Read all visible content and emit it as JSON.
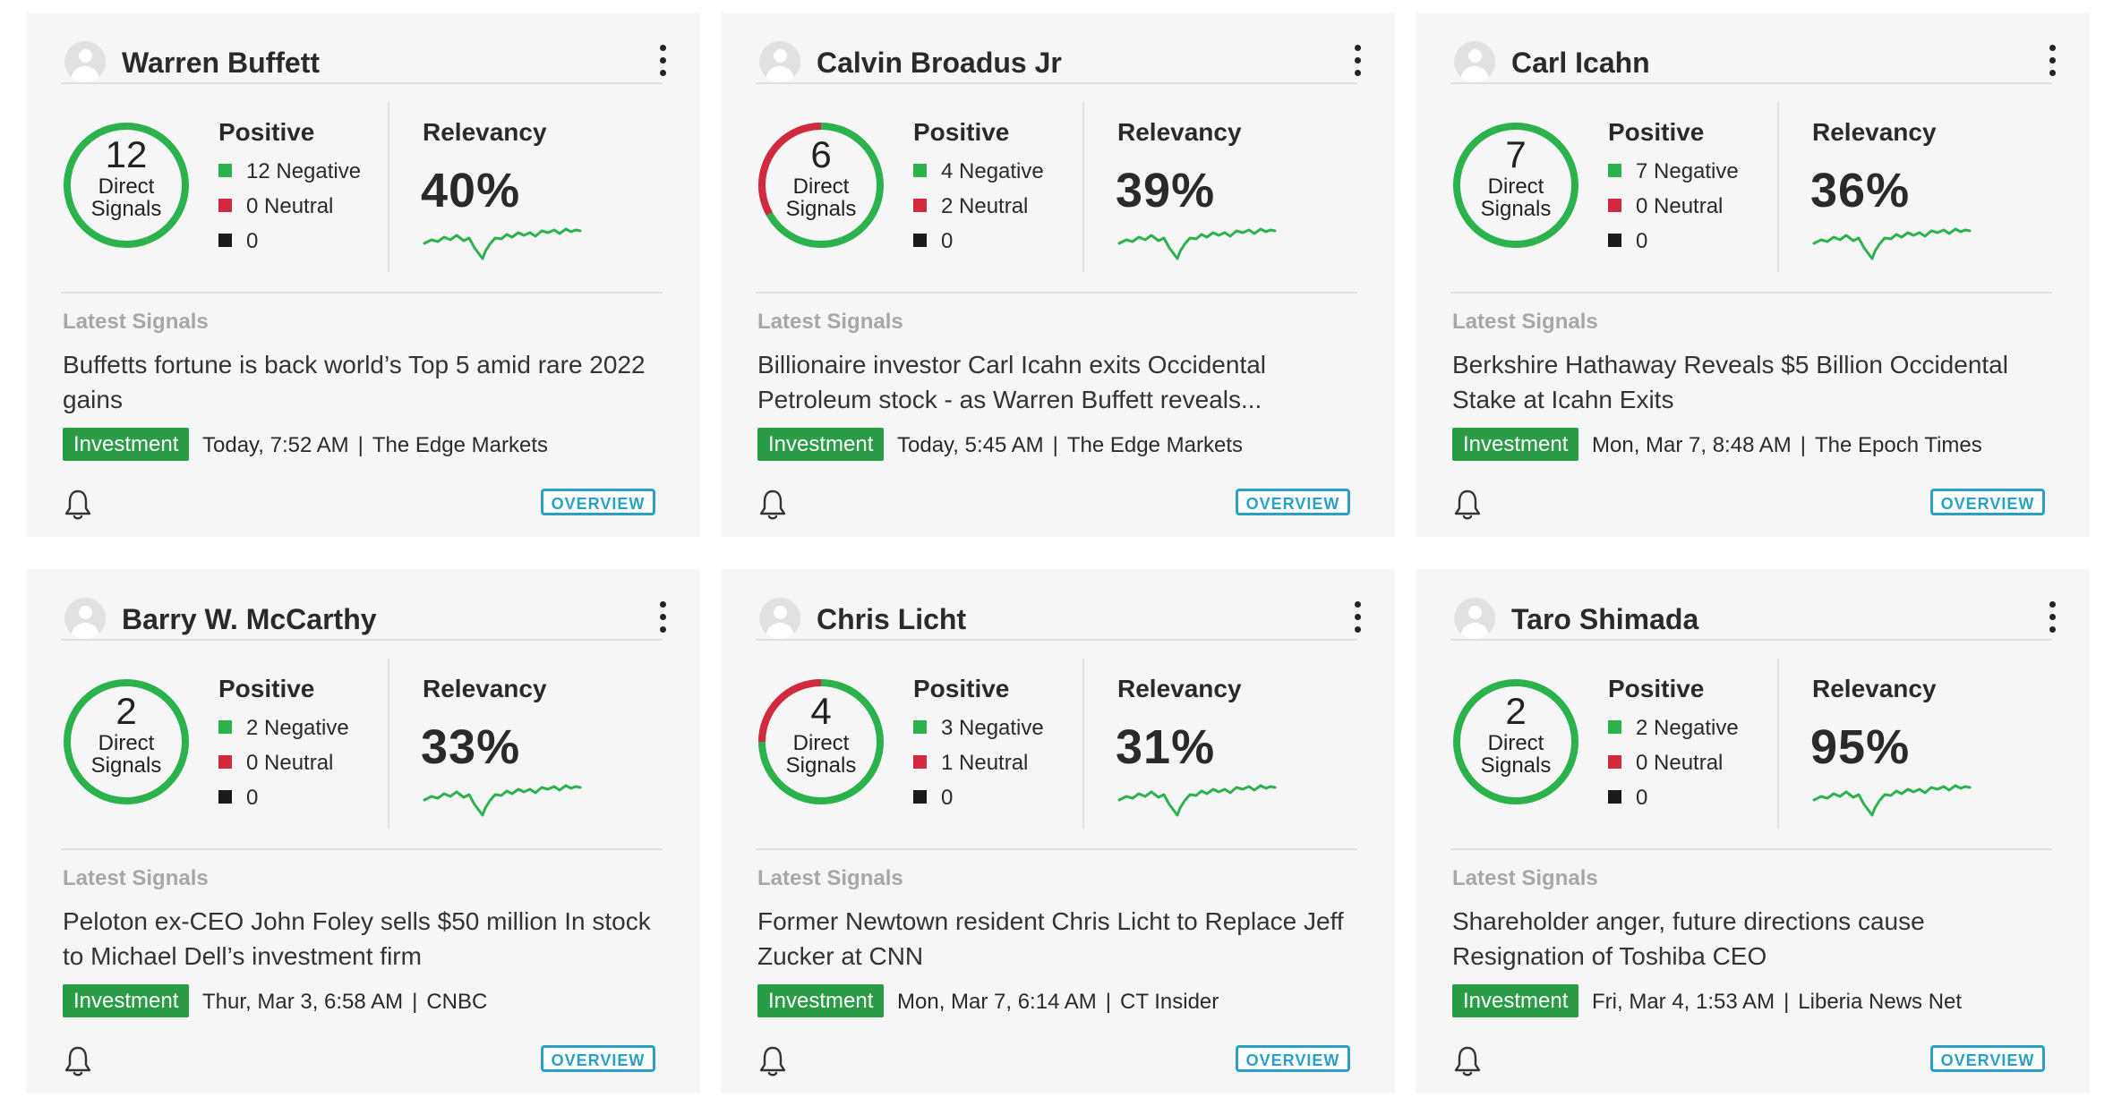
{
  "labels": {
    "direct": "Direct",
    "signals": "Signals",
    "positive": "Positive",
    "relevancy": "Relevancy",
    "latest_signals": "Latest Signals",
    "overview": "OVERVIEW",
    "separator": "|"
  },
  "colors": {
    "positive": "#2bb24c",
    "negative": "#d3293e",
    "neutral": "#1a1a1a",
    "tag": "#2b9c46",
    "overview": "#2aa0c8"
  },
  "icons": {
    "avatar": "user-avatar-icon",
    "menu": "more-vertical-icon",
    "bell": "bell-icon"
  },
  "cards": [
    {
      "name": "Warren Buffett",
      "count": "12",
      "ring_negative_fraction": 0,
      "legend": {
        "negative": "12 Negative",
        "neutral": "0 Neutral",
        "other": "0"
      },
      "relevancy": "40%",
      "headline": "Buffetts fortune is back world’s Top 5 amid rare 2022 gains",
      "tag": "Investment",
      "time": "Today, 7:52 AM",
      "source": "The Edge Markets"
    },
    {
      "name": "Calvin Broadus Jr",
      "count": "6",
      "ring_negative_fraction": 0.33,
      "legend": {
        "negative": "4 Negative",
        "neutral": "2 Neutral",
        "other": "0"
      },
      "relevancy": "39%",
      "headline": "Billionaire investor Carl Icahn exits Occidental Petroleum stock - as Warren Buffett reveals...",
      "tag": "Investment",
      "time": "Today, 5:45 AM",
      "source": "The Edge Markets"
    },
    {
      "name": "Carl Icahn",
      "count": "7",
      "ring_negative_fraction": 0,
      "legend": {
        "negative": "7 Negative",
        "neutral": "0 Neutral",
        "other": "0"
      },
      "relevancy": "36%",
      "headline": "Berkshire Hathaway Reveals $5 Billion Occidental Stake at Icahn Exits",
      "tag": "Investment",
      "time": "Mon, Mar 7, 8:48 AM",
      "source": "The Epoch Times"
    },
    {
      "name": "Barry W. McCarthy",
      "count": "2",
      "ring_negative_fraction": 0,
      "legend": {
        "negative": "2 Negative",
        "neutral": "0 Neutral",
        "other": "0"
      },
      "relevancy": "33%",
      "headline": "Peloton ex-CEO John Foley sells $50 million In stock to Michael Dell’s investment firm",
      "tag": "Investment",
      "time": "Thur, Mar 3, 6:58 AM",
      "source": "CNBC"
    },
    {
      "name": "Chris Licht",
      "count": "4",
      "ring_negative_fraction": 0.25,
      "legend": {
        "negative": "3 Negative",
        "neutral": "1 Neutral",
        "other": "0"
      },
      "relevancy": "31%",
      "headline": "Former Newtown resident Chris Licht to Replace Jeff Zucker at CNN",
      "tag": "Investment",
      "time": "Mon, Mar 7, 6:14 AM",
      "source": "CT Insider"
    },
    {
      "name": "Taro Shimada",
      "count": "2",
      "ring_negative_fraction": 0,
      "legend": {
        "negative": "2 Negative",
        "neutral": "0 Neutral",
        "other": "0"
      },
      "relevancy": "95%",
      "headline": "Shareholder anger, future directions cause Resignation of Toshiba CEO",
      "tag": "Investment",
      "time": "Fri, Mar 4, 1:53 AM",
      "source": "Liberia News Net"
    }
  ]
}
